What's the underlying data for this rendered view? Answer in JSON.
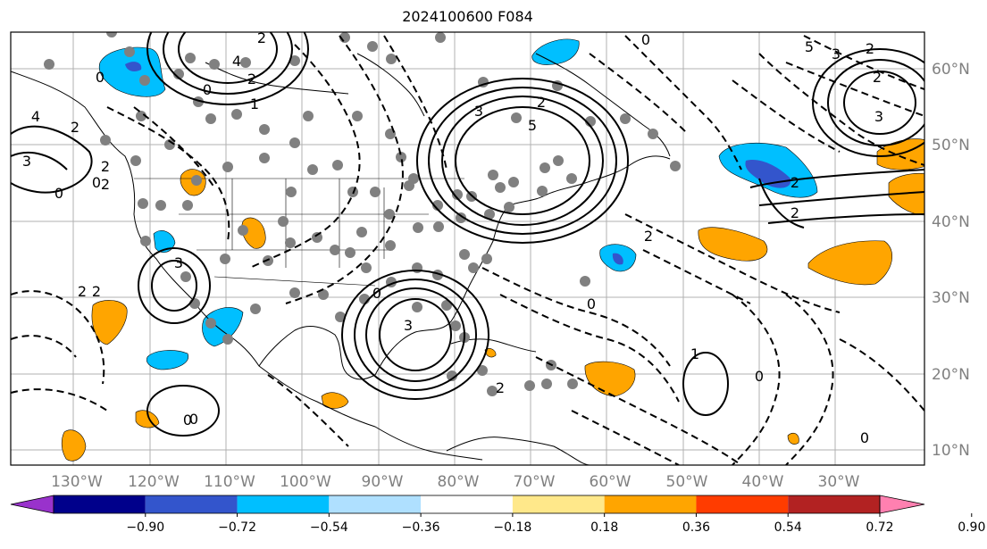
{
  "title": "2024100600 F084",
  "map": {
    "lon_labels": [
      "130°W",
      "120°W",
      "110°W",
      "100°W",
      "90°W",
      "80°W",
      "70°W",
      "60°W",
      "50°W",
      "40°W",
      "30°W"
    ],
    "lat_labels": [
      "60°N",
      "50°N",
      "40°N",
      "30°N",
      "20°N",
      "10°N"
    ],
    "contour_labels": [
      "2",
      "4",
      "2",
      "0",
      "1",
      "3",
      "4",
      "2",
      "0",
      "2",
      "3",
      "5",
      "2",
      "0",
      "5",
      "3",
      "2",
      "2",
      "3",
      "2",
      "0",
      "2",
      "3",
      "2",
      "2",
      "3",
      "0",
      "0",
      "2",
      "0",
      "1",
      "2",
      "0",
      "0",
      "0",
      "2",
      "0"
    ]
  },
  "colorbar": {
    "tick_labels": [
      "−0.90",
      "−0.72",
      "−0.54",
      "−0.36",
      "−0.18",
      "0.18",
      "0.36",
      "0.54",
      "0.72",
      "0.90"
    ],
    "colors": [
      "#9932cc",
      "#00008b",
      "#3355cc",
      "#00bfff",
      "#afe0ff",
      "#ffffff",
      "#ffe88a",
      "#ffa500",
      "#ff3c00",
      "#b22222",
      "#ff80b0"
    ]
  }
}
